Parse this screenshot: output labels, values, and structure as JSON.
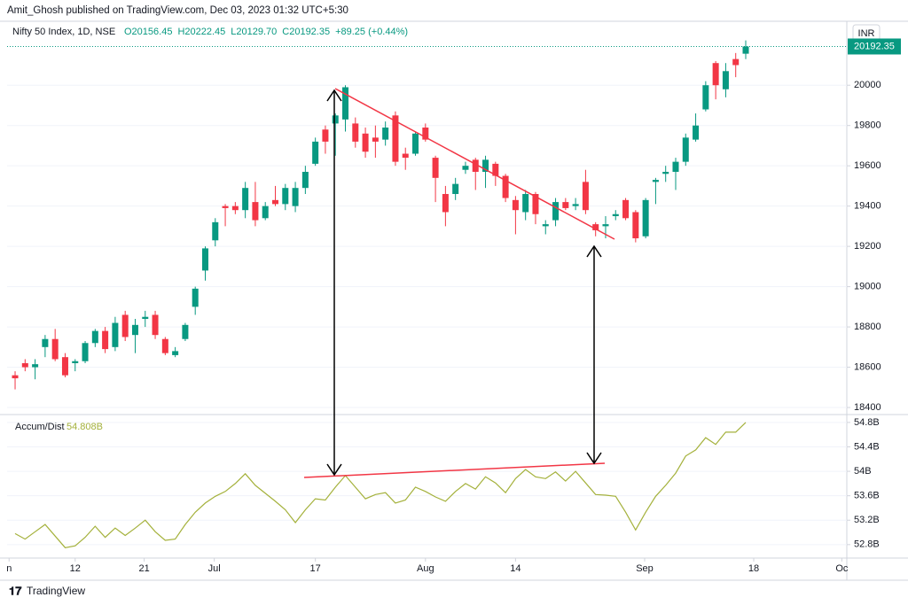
{
  "publisher_line": "Amit_Ghosh published on TradingView.com, Dec 03, 2023 01:32 UTC+5:30",
  "currency": "INR",
  "footer_brand": "TradingView",
  "chart_data": [
    {
      "type": "candlestick",
      "title": "Nifty 50 Index, 1D, NSE",
      "header_values": [
        "O20156.45",
        "H20222.45",
        "L20129.70",
        "C20192.35",
        "+89.25 (+0.44%)"
      ],
      "open": [
        18560,
        18620,
        18600,
        18700,
        18740,
        18650,
        18620,
        18630,
        18720,
        18780,
        18700,
        18860,
        18760,
        18840,
        18860,
        18740,
        18660,
        18740,
        18900,
        19080,
        19230,
        19400,
        19400,
        19380,
        19420,
        19340,
        19430,
        19410,
        19400,
        19490,
        19610,
        19780,
        19810,
        19830,
        19810,
        19760,
        19740,
        19730,
        19850,
        19660,
        19660,
        19790,
        19640,
        19460,
        19460,
        19580,
        19630,
        19570,
        19610,
        19550,
        19430,
        19370,
        19460,
        19300,
        19330,
        19420,
        19400,
        19520,
        19310,
        19300,
        19350,
        19430,
        19370,
        19250,
        19520,
        19560,
        19570,
        19620,
        19730,
        19880,
        20110,
        19980,
        20130,
        20156.45
      ],
      "high": [
        18580,
        18640,
        18640,
        18760,
        18790,
        18670,
        18640,
        18730,
        18790,
        18800,
        18850,
        18880,
        18840,
        18880,
        18880,
        18750,
        18700,
        18820,
        19000,
        19200,
        19340,
        19410,
        19420,
        19520,
        19520,
        19420,
        19500,
        19510,
        19520,
        19600,
        19740,
        19800,
        19860,
        20000,
        19840,
        19790,
        19800,
        19820,
        19870,
        19690,
        19770,
        19810,
        19650,
        19500,
        19540,
        19620,
        19640,
        19650,
        19620,
        19560,
        19450,
        19480,
        19470,
        19330,
        19440,
        19440,
        19440,
        19580,
        19320,
        19350,
        19380,
        19440,
        19380,
        19440,
        19540,
        19600,
        19640,
        19760,
        19860,
        20020,
        20120,
        20110,
        20160,
        20222.45
      ],
      "low": [
        18490,
        18580,
        18540,
        18650,
        18630,
        18550,
        18580,
        18620,
        18700,
        18670,
        18680,
        18730,
        18670,
        18800,
        18740,
        18660,
        18650,
        18730,
        18860,
        19030,
        19200,
        19300,
        19360,
        19340,
        19300,
        19330,
        19400,
        19380,
        19370,
        19460,
        19600,
        19660,
        19650,
        19770,
        19690,
        19640,
        19640,
        19700,
        19600,
        19580,
        19650,
        19720,
        19420,
        19300,
        19430,
        19560,
        19480,
        19490,
        19500,
        19420,
        19260,
        19330,
        19310,
        19260,
        19300,
        19380,
        19380,
        19360,
        19250,
        19240,
        19330,
        19330,
        19220,
        19240,
        19410,
        19520,
        19480,
        19600,
        19720,
        19870,
        19930,
        19940,
        20040,
        20129.7
      ],
      "close": [
        18545,
        18600,
        18615,
        18740,
        18640,
        18560,
        18630,
        18720,
        18780,
        18690,
        18820,
        18750,
        18810,
        18850,
        18760,
        18670,
        18680,
        18810,
        18990,
        19190,
        19320,
        19390,
        19380,
        19490,
        19330,
        19400,
        19410,
        19490,
        19490,
        19570,
        19720,
        19720,
        19850,
        19990,
        19720,
        19670,
        19720,
        19790,
        19620,
        19640,
        19760,
        19730,
        19540,
        19370,
        19510,
        19600,
        19570,
        19630,
        19550,
        19440,
        19380,
        19460,
        19360,
        19310,
        19420,
        19390,
        19410,
        19380,
        19280,
        19310,
        19360,
        19340,
        19240,
        19430,
        19530,
        19570,
        19620,
        19740,
        19800,
        20000,
        20000,
        20070,
        20100,
        20192.35
      ],
      "up_color": "#089981",
      "down_color": "#f23645",
      "last_price": 20192.35,
      "xlim": [
        -0.8,
        83.1
      ],
      "ylim": [
        18365,
        20300
      ],
      "yticks": [
        18400,
        18600,
        18800,
        19000,
        19200,
        19400,
        19600,
        19800,
        20000
      ]
    },
    {
      "type": "line",
      "title": "Accum/Dist",
      "last_value": 54.808,
      "last_value_label": "54.808B",
      "color": "#a4b13b",
      "values": [
        52.98,
        52.89,
        53.01,
        53.13,
        52.94,
        52.75,
        52.78,
        52.92,
        53.1,
        52.92,
        53.07,
        52.95,
        53.07,
        53.2,
        53.01,
        52.87,
        52.89,
        53.13,
        53.33,
        53.48,
        53.59,
        53.67,
        53.8,
        53.96,
        53.77,
        53.64,
        53.51,
        53.37,
        53.16,
        53.37,
        53.55,
        53.53,
        53.74,
        53.93,
        53.74,
        53.55,
        53.62,
        53.65,
        53.48,
        53.53,
        53.74,
        53.67,
        53.58,
        53.51,
        53.67,
        53.8,
        53.71,
        53.91,
        53.81,
        53.65,
        53.88,
        54.03,
        53.91,
        53.88,
        53.99,
        53.84,
        54.0,
        53.81,
        53.62,
        53.61,
        53.59,
        53.33,
        53.04,
        53.33,
        53.59,
        53.77,
        53.97,
        54.25,
        54.35,
        54.55,
        54.44,
        54.64,
        54.64,
        54.8
      ],
      "xlim": [
        -0.8,
        83.1
      ],
      "ylim": [
        52.58,
        54.9
      ],
      "yticks": [
        {
          "value": 52.8,
          "label": "52.8B"
        },
        {
          "value": 53.2,
          "label": "53.2B"
        },
        {
          "value": 53.6,
          "label": "53.6B"
        },
        {
          "value": 54,
          "label": "54B"
        },
        {
          "value": 54.4,
          "label": "54.4B"
        },
        {
          "value": 54.8,
          "label": "54.8B"
        }
      ],
      "xticks": [
        {
          "value": -0.6,
          "label": "n"
        },
        {
          "value": 6.0,
          "label": "12"
        },
        {
          "value": 12.9,
          "label": "21"
        },
        {
          "value": 19.9,
          "label": "Jul"
        },
        {
          "value": 30.0,
          "label": "17"
        },
        {
          "value": 41.0,
          "label": "Aug"
        },
        {
          "value": 50.0,
          "label": "14"
        },
        {
          "value": 62.9,
          "label": "Sep"
        },
        {
          "value": 73.8,
          "label": "18"
        },
        {
          "value": 82.6,
          "label": "Oc"
        }
      ]
    }
  ]
}
